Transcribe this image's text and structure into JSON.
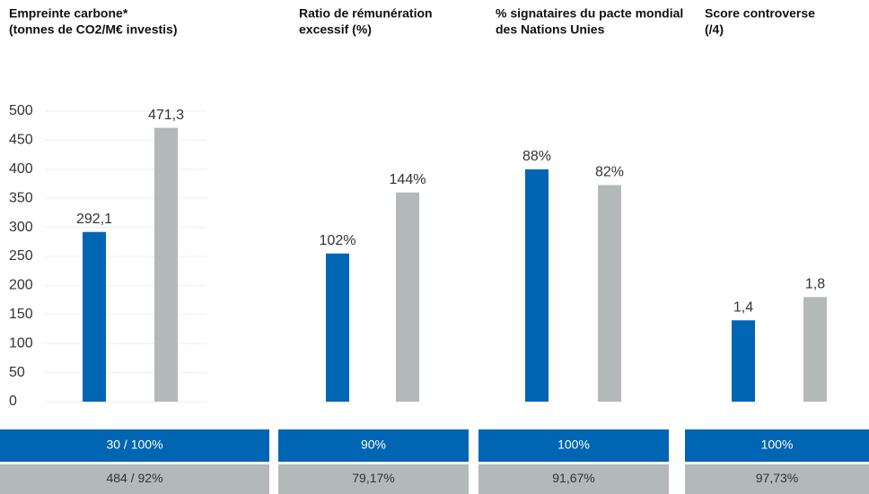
{
  "chart_data": [
    {
      "type": "bar",
      "title": [
        "Empreinte carbone*",
        "(tonnes de CO2/M€ investis)"
      ],
      "categories": [
        null,
        null
      ],
      "values": [
        292.1,
        471.3
      ],
      "value_labels": [
        "292,1",
        "471,3"
      ],
      "colors": [
        "#0066b3",
        "#b3b8b8"
      ],
      "ylim": [
        0,
        500
      ],
      "yticks": [
        0,
        50,
        100,
        150,
        200,
        250,
        300,
        350,
        400,
        450,
        500
      ],
      "grid": true,
      "footer": [
        "30 / 100%",
        "484 / 92%"
      ]
    },
    {
      "type": "bar",
      "title": [
        "Ratio de rémunération",
        "excessif (%)"
      ],
      "categories": [
        null,
        null
      ],
      "values": [
        102,
        144
      ],
      "value_labels": [
        "102%",
        "144%"
      ],
      "colors": [
        "#0066b3",
        "#b3b8b8"
      ],
      "ylim": [
        0,
        200
      ],
      "grid": false,
      "footer": [
        "90%",
        "79,17%"
      ]
    },
    {
      "type": "bar",
      "title": [
        "% signataires du pacte mondial",
        "des Nations Unies"
      ],
      "categories": [
        null,
        null
      ],
      "values": [
        88,
        82
      ],
      "value_labels": [
        "88%",
        "82%"
      ],
      "colors": [
        "#0066b3",
        "#b3b8b8"
      ],
      "ylim": [
        0,
        110
      ],
      "grid": false,
      "footer": [
        "100%",
        "91,67%"
      ]
    },
    {
      "type": "bar",
      "title": [
        "Score controverse",
        "(/4)"
      ],
      "categories": [
        null,
        null
      ],
      "values": [
        1.4,
        1.8
      ],
      "value_labels": [
        "1,4",
        "1,8"
      ],
      "colors": [
        "#0066b3",
        "#b3b8b8"
      ],
      "ylim": [
        0,
        5
      ],
      "grid": false,
      "footer": [
        "100%",
        "97,73%"
      ]
    }
  ]
}
